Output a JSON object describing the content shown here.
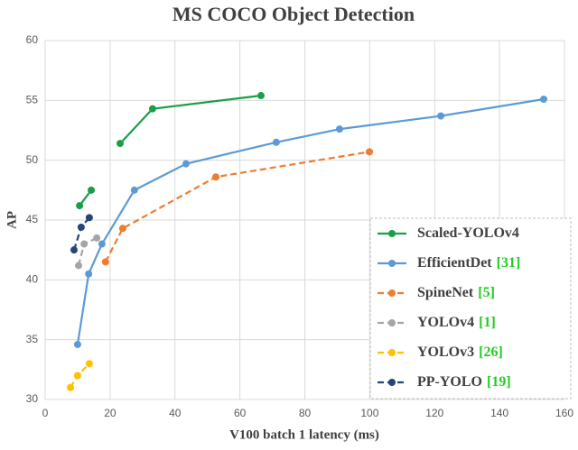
{
  "chart_data": {
    "type": "line",
    "title": "MS COCO Object Detection",
    "x_label": "V100 batch 1 latency (ms)",
    "y_label": "AP",
    "xlim": [
      0,
      160
    ],
    "xticks": [
      0,
      20,
      40,
      60,
      80,
      100,
      120,
      140,
      160
    ],
    "ylim": [
      30,
      60
    ],
    "yticks": [
      30,
      35,
      40,
      45,
      50,
      55,
      60
    ],
    "grid": true,
    "legend": "lower right",
    "series": [
      {
        "name": "Scaled-YOLOv4",
        "color": "#1a9e48",
        "dashed": false,
        "x": [
          10.6,
          14.2,
          null,
          23.1,
          33.1,
          66.5
        ],
        "values": [
          46.2,
          47.5,
          null,
          51.4,
          54.3,
          55.4
        ]
      },
      {
        "name": "EfficientDet",
        "citation": "[31]",
        "color": "#5b9bd5",
        "dashed": false,
        "x": [
          10.0,
          13.4,
          17.5,
          27.5,
          43.4,
          71.2,
          90.7,
          121.9,
          153.6
        ],
        "values": [
          34.6,
          40.5,
          43.0,
          47.5,
          49.7,
          51.5,
          52.6,
          53.7,
          55.1
        ]
      },
      {
        "name": "SpineNet",
        "citation": "[5]",
        "color": "#ed7d31",
        "dashed": true,
        "x": [
          18.6,
          23.9,
          52.6,
          99.9
        ],
        "values": [
          41.5,
          44.3,
          48.6,
          50.7
        ]
      },
      {
        "name": "YOLOv4",
        "citation": "[1]",
        "color": "#a5a5a5",
        "dashed": true,
        "x": [
          10.3,
          12.0,
          15.9
        ],
        "values": [
          41.2,
          43.0,
          43.5
        ]
      },
      {
        "name": "YOLOv3",
        "citation": "[26]",
        "color": "#ffc000",
        "dashed": true,
        "x": [
          7.8,
          10.0,
          13.6
        ],
        "values": [
          31.0,
          32.0,
          33.0
        ]
      },
      {
        "name": "PP-YOLO",
        "citation": "[19]",
        "color": "#264478",
        "dashed": true,
        "x": [
          8.9,
          11.1,
          13.6
        ],
        "values": [
          42.5,
          44.4,
          45.2
        ]
      }
    ]
  }
}
